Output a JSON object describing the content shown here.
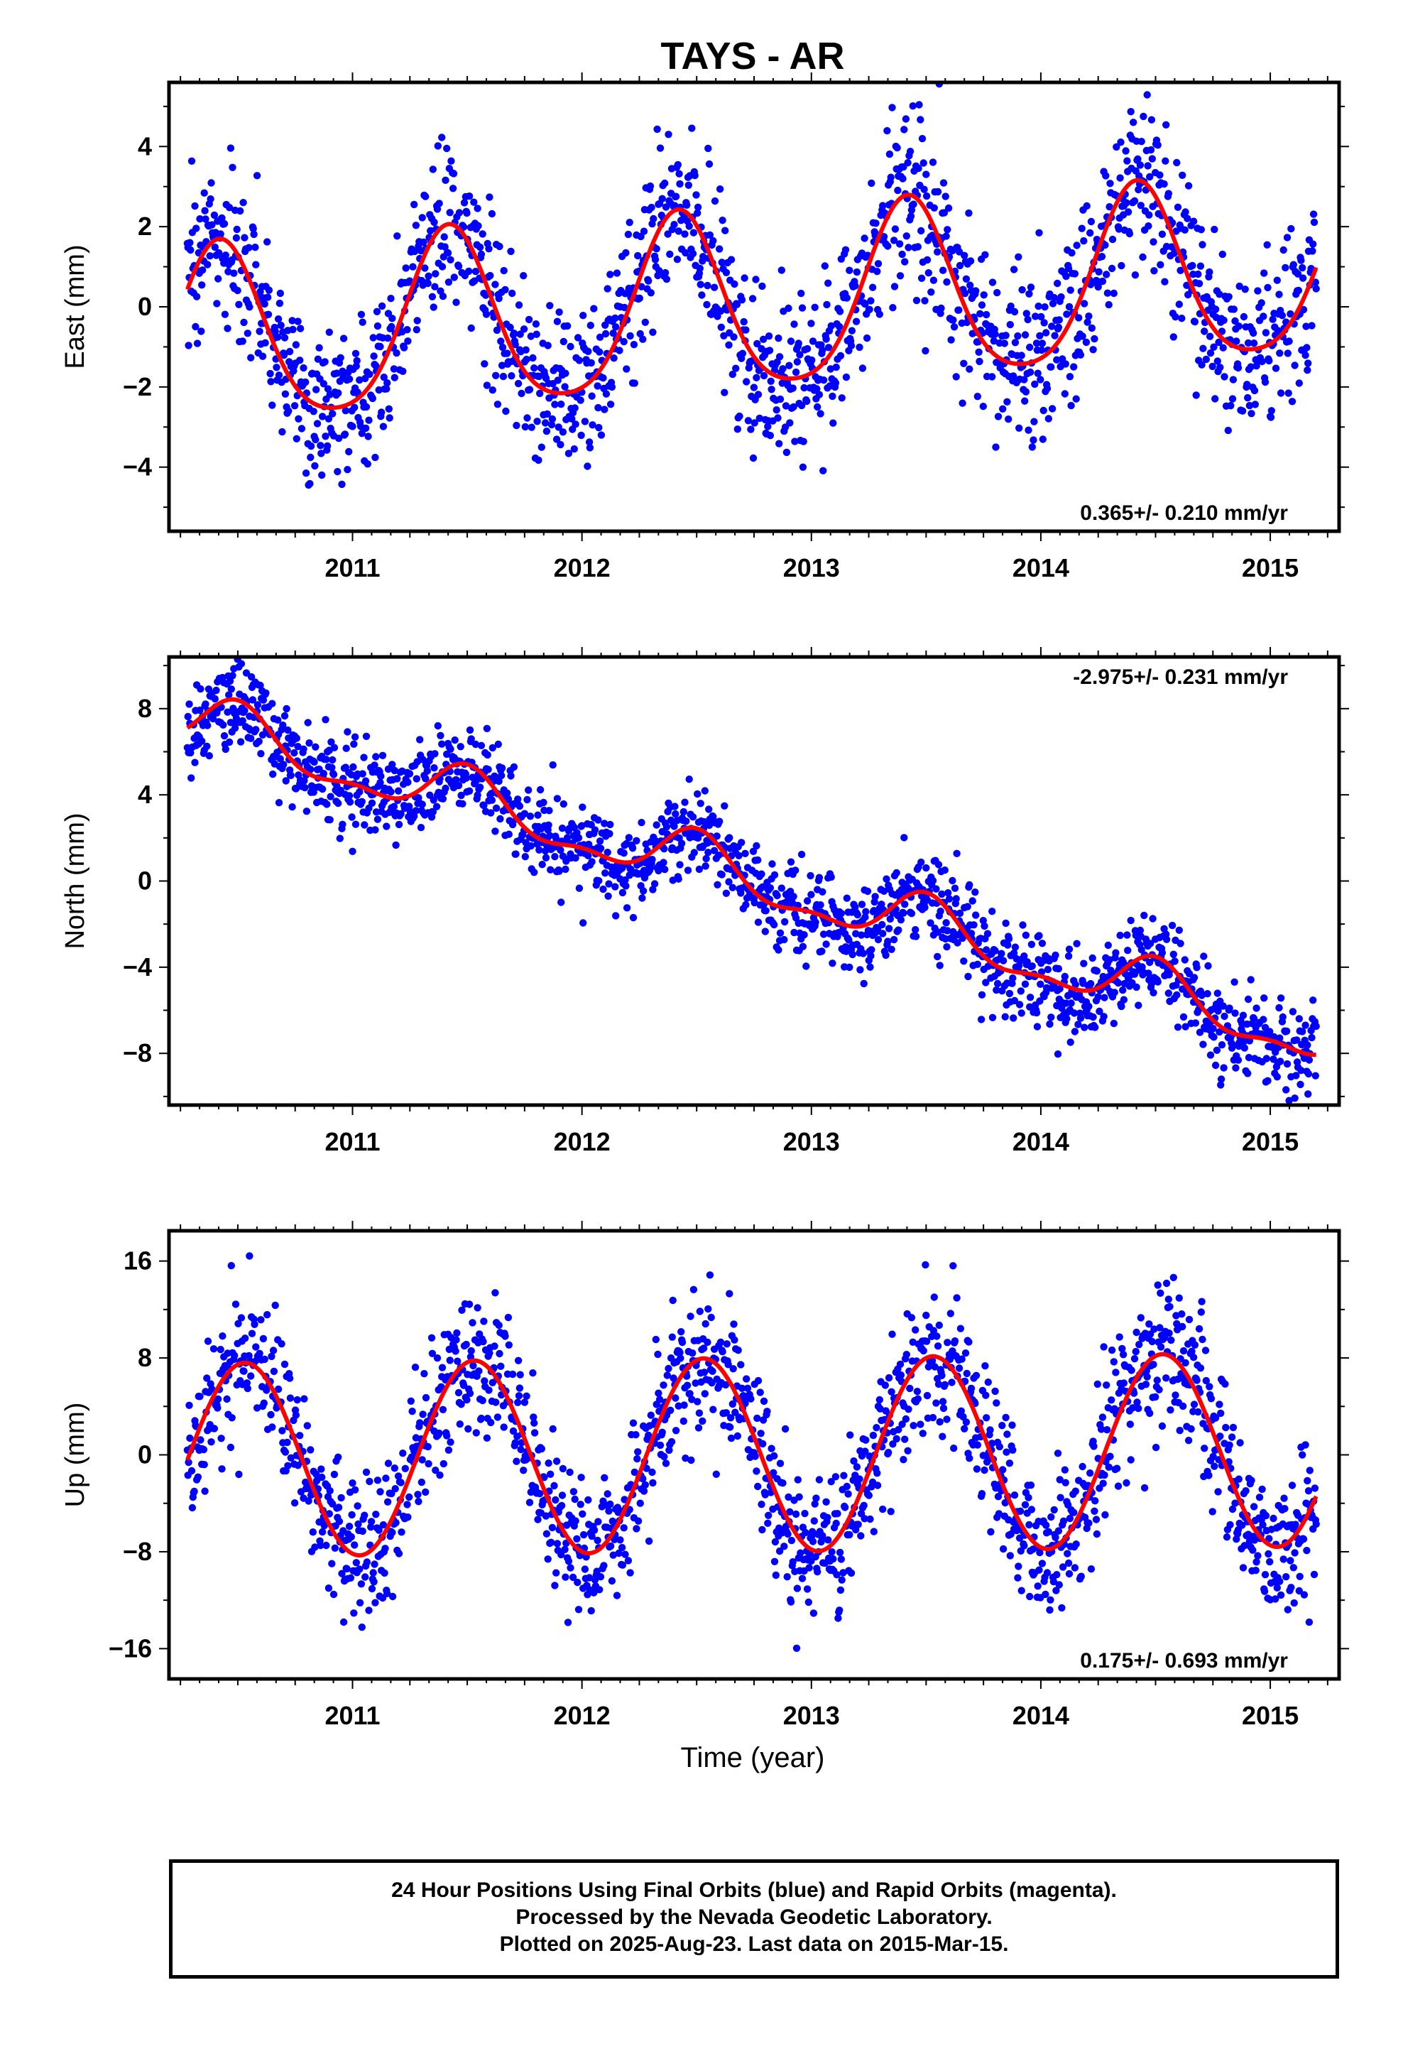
{
  "chart_data": {
    "type": "scatter",
    "title": "TAYS - AR",
    "xlabel": "Time (year)",
    "x_range": [
      2010.2,
      2015.3
    ],
    "x_ticks": [
      "2011",
      "2012",
      "2013",
      "2014",
      "2015"
    ],
    "panels": [
      {
        "ylabel": "East (mm)",
        "ylim": [
          -5.6,
          5.6
        ],
        "y_ticks": [
          "4",
          "2",
          "0",
          "−2",
          "−4"
        ],
        "y_tick_values": [
          4,
          2,
          0,
          -2,
          -4
        ],
        "rate_label": "0.365+/- 0.210 mm/yr",
        "rate_position": "bottom-right",
        "trend": {
          "slope": 0.365,
          "annual_amplitude": 2.2,
          "semiannual_amplitude": 0.35,
          "peak_phase": 0.42
        },
        "scatter_sd": 1.1
      },
      {
        "ylabel": "North (mm)",
        "ylim": [
          -10.4,
          10.4
        ],
        "y_ticks": [
          "8",
          "4",
          "0",
          "−4",
          "−8"
        ],
        "y_tick_values": [
          8,
          4,
          0,
          -4,
          -8
        ],
        "rate_label": "-2.975+/- 0.231 mm/yr",
        "rate_position": "top-right",
        "trend": {
          "slope": -2.975,
          "annual_amplitude": 1.2,
          "semiannual_amplitude": 0.5,
          "peak_phase": 0.5
        },
        "scatter_sd": 1.1
      },
      {
        "ylabel": "Up (mm)",
        "ylim": [
          -18.5,
          18.5
        ],
        "y_ticks": [
          "16",
          "8",
          "0",
          "−8",
          "−16"
        ],
        "y_tick_values": [
          16,
          8,
          0,
          -8,
          -16
        ],
        "rate_label": "0.175+/- 0.693 mm/yr",
        "rate_position": "bottom-right",
        "trend": {
          "slope": 0.175,
          "annual_amplitude": 8.0,
          "semiannual_amplitude": 0.0,
          "peak_phase": 0.53
        },
        "scatter_sd": 3.2
      }
    ],
    "series": [
      {
        "name": "Final Orbits",
        "color": "#0000ff",
        "marker": "dot"
      },
      {
        "name": "Rapid Orbits",
        "color": "#ff00ff",
        "marker": "dot"
      }
    ],
    "fit_color": "#ff0000"
  },
  "footer": {
    "line1": "24 Hour Positions Using Final Orbits (blue) and Rapid Orbits (magenta).",
    "line2": "Processed by the Nevada Geodetic Laboratory.",
    "line3": "Plotted on 2025-Aug-23. Last data on 2015-Mar-15."
  }
}
